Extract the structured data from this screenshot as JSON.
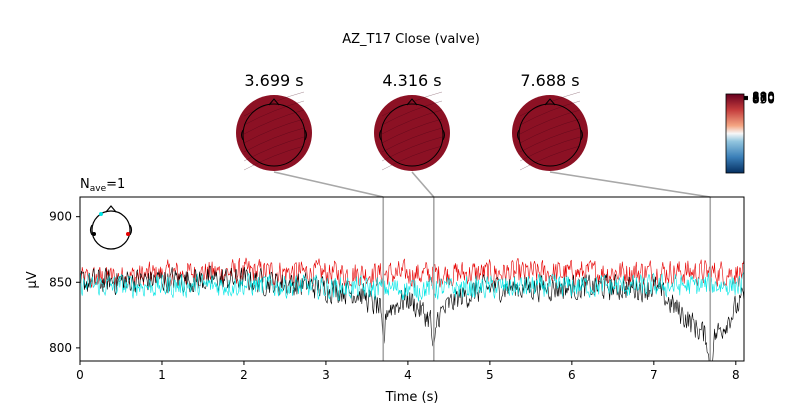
{
  "chart_data": {
    "type": "line",
    "title": "AZ_T17 Close (valve)",
    "nave_prefix": "N",
    "nave_sub": "ave",
    "nave_value": "=1",
    "xlabel": "Time (s)",
    "ylabel": "µV",
    "xlim": [
      0,
      8.1
    ],
    "ylim": [
      790,
      915
    ],
    "x_ticks": [
      0,
      1,
      2,
      3,
      4,
      5,
      6,
      7,
      8
    ],
    "y_ticks": [
      800,
      850,
      900
    ],
    "series": [
      {
        "color": "#e60000",
        "baseline": 855,
        "segments": [
          [
            0,
            852
          ],
          [
            1,
            856
          ],
          [
            2,
            858
          ],
          [
            3,
            857
          ],
          [
            4,
            856
          ],
          [
            5,
            857
          ],
          [
            6,
            857
          ],
          [
            7,
            858
          ],
          [
            8.1,
            857
          ]
        ]
      },
      {
        "color": "#000000",
        "baseline": 850,
        "segments": [
          [
            0,
            850
          ],
          [
            1,
            852
          ],
          [
            2,
            852
          ],
          [
            3,
            846
          ],
          [
            3.4,
            842
          ],
          [
            3.7,
            828
          ],
          [
            4,
            838
          ],
          [
            4.3,
            820
          ],
          [
            4.6,
            838
          ],
          [
            5,
            846
          ],
          [
            6,
            846
          ],
          [
            7,
            846
          ],
          [
            7.7,
            805
          ],
          [
            8.1,
            838
          ]
        ]
      },
      {
        "color": "#00e5e5",
        "baseline": 848,
        "segments": [
          [
            0,
            848
          ],
          [
            1,
            847
          ],
          [
            2,
            848
          ],
          [
            3,
            846
          ],
          [
            4,
            845
          ],
          [
            5,
            846
          ],
          [
            6,
            847
          ],
          [
            7,
            847
          ],
          [
            8.1,
            848
          ]
        ]
      }
    ],
    "topomaps": [
      {
        "time": 3.699,
        "label": "3.699 s"
      },
      {
        "time": 4.316,
        "label": "4.316 s"
      },
      {
        "time": 7.688,
        "label": "7.688 s"
      }
    ],
    "colorbar_tick_labels": [
      "890",
      "880",
      "870",
      "860",
      "850"
    ],
    "colors": {
      "topomap_fill": "#8c1124",
      "connector": "#a8a8a8",
      "sensor_left": "#00e5e5",
      "sensor_right": "#e60000"
    }
  }
}
